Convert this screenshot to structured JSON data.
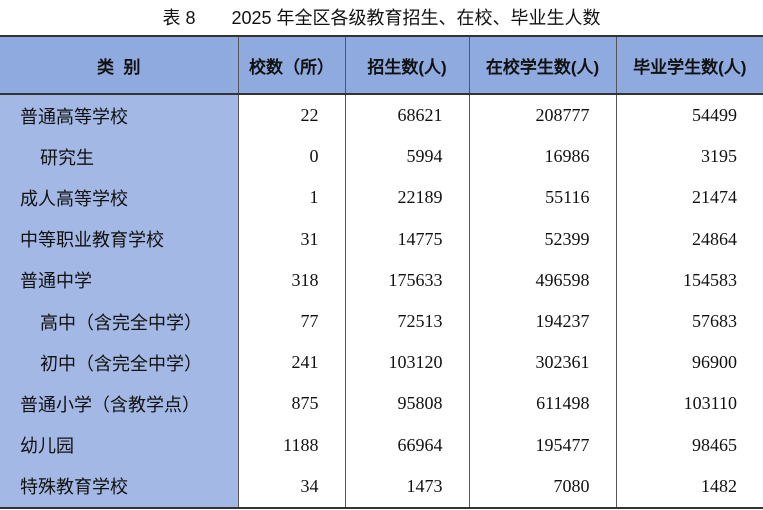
{
  "header": {
    "title": "表 8　　2025 年全区各级教育招生、在校、毕业生人数"
  },
  "table": {
    "columns": [
      "类  别",
      "校数（所）",
      "招生数(人)",
      "在校学生数(人)",
      "毕业学生数(人)"
    ],
    "rows": [
      [
        "普通高等学校",
        22,
        68621,
        208777,
        54499
      ],
      [
        "研究生",
        0,
        5994,
        16986,
        3195
      ],
      [
        "成人高等学校",
        1,
        22189,
        55116,
        21474
      ],
      [
        "中等职业教育学校",
        31,
        14775,
        52399,
        24864
      ],
      [
        "普通中学",
        318,
        175633,
        496598,
        154583
      ],
      [
        "高中（含完全中学）",
        77,
        72513,
        194237,
        57683
      ],
      [
        "初中（含完全中学）",
        241,
        103120,
        302361,
        96900
      ],
      [
        "普通小学（含教学点）",
        875,
        95808,
        611498,
        103110
      ],
      [
        "幼儿园",
        1188,
        66964,
        195477,
        98465
      ],
      [
        "特殊教育学校",
        34,
        1473,
        7080,
        1482
      ]
    ]
  }
}
